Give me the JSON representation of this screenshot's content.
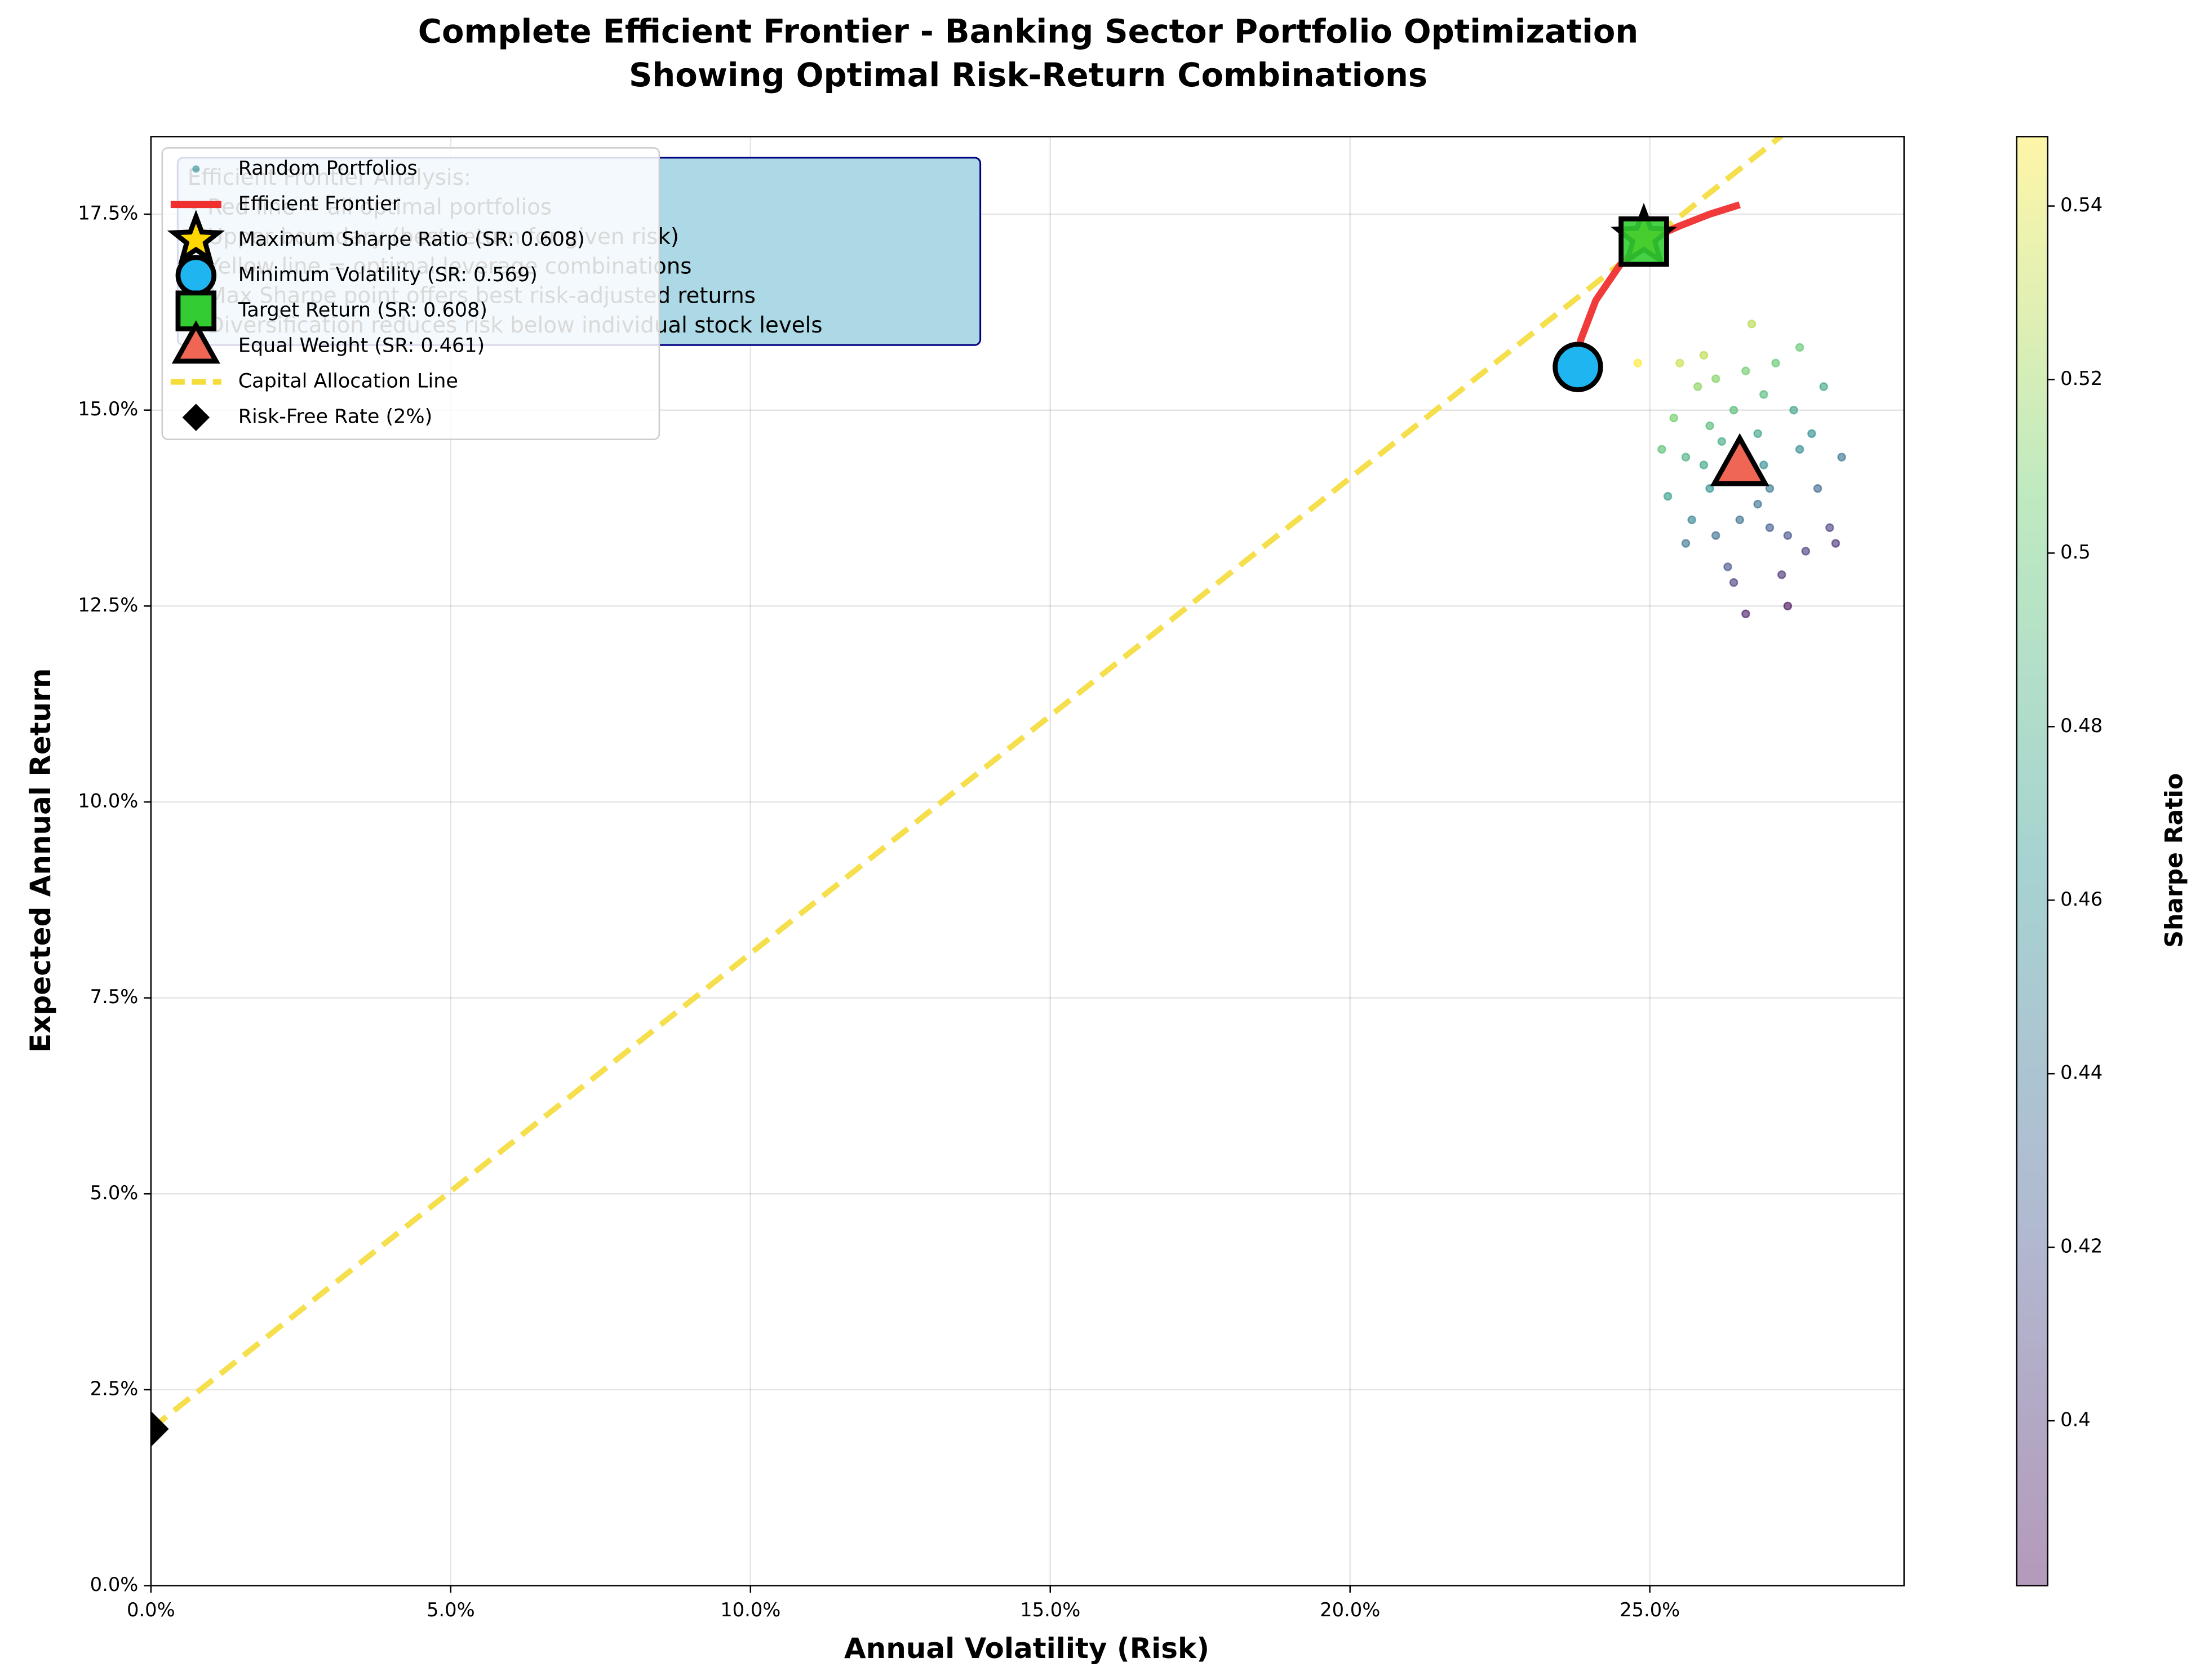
{
  "chart_data": {
    "type": "scatter",
    "title": "Complete Efficient Frontier - Banking Sector Portfolio Optimization",
    "subtitle": "Showing Optimal Risk-Return Combinations",
    "xlabel": "Annual Volatility (Risk)",
    "ylabel": "Expected Annual Return",
    "xlim": [
      0,
      29.24
    ],
    "ylim": [
      0,
      18.49
    ],
    "xticks": [
      {
        "value": 0,
        "label": "0.0%"
      },
      {
        "value": 5,
        "label": "5.0%"
      },
      {
        "value": 10,
        "label": "10.0%"
      },
      {
        "value": 15,
        "label": "15.0%"
      },
      {
        "value": 20,
        "label": "20.0%"
      },
      {
        "value": 25,
        "label": "25.0%"
      }
    ],
    "yticks": [
      {
        "value": 0,
        "label": "0.0%"
      },
      {
        "value": 2.5,
        "label": "2.5%"
      },
      {
        "value": 5,
        "label": "5.0%"
      },
      {
        "value": 7.5,
        "label": "7.5%"
      },
      {
        "value": 10,
        "label": "10.0%"
      },
      {
        "value": 12.5,
        "label": "12.5%"
      },
      {
        "value": 15,
        "label": "15.0%"
      },
      {
        "value": 17.5,
        "label": "17.5%"
      }
    ],
    "grid": true,
    "legend": "upper left",
    "colorbar": {
      "label": "Sharpe Ratio",
      "colormap": "viridis",
      "clim": [
        0.381,
        0.548
      ],
      "ticks": [
        0.4,
        0.42,
        0.44,
        0.46,
        0.48,
        0.5,
        0.52,
        0.54
      ]
    },
    "annotation": {
      "title": "Efficient Frontier Analysis:",
      "lines": [
        "• Red line = all optimal portfolios",
        "• Upper boundary (best return for given risk)",
        "• Yellow line = optimal leverage combinations",
        "• Max Sharpe point offers best risk-adjusted returns",
        "• Diversification reduces risk below individual stock levels"
      ]
    },
    "series": [
      {
        "name": "Random Portfolios",
        "kind": "scatter",
        "x": [
          26.5,
          26.2,
          26.8,
          27.0,
          26.0,
          26.4,
          25.8,
          27.3,
          27.5,
          25.6,
          26.9,
          27.2,
          26.6,
          25.4,
          26.1,
          27.8,
          28.2,
          25.9,
          26.7,
          25.3,
          27.6,
          26.3,
          27.1,
          26.0,
          25.7,
          28.0,
          26.8,
          27.4,
          25.5,
          26.4,
          27.9,
          25.2,
          24.8,
          26.6,
          27.0,
          26.2,
          26.9,
          25.9,
          27.7,
          26.5,
          27.3,
          26.1,
          27.5,
          25.6,
          28.1
        ],
        "values": [
          14.2,
          14.6,
          13.8,
          14.0,
          14.0,
          15.0,
          15.3,
          13.4,
          14.5,
          14.4,
          15.2,
          12.9,
          12.4,
          14.9,
          13.4,
          14.0,
          14.4,
          15.7,
          16.1,
          13.9,
          13.2,
          13.0,
          15.6,
          14.8,
          13.6,
          13.5,
          14.7,
          15.0,
          15.6,
          12.8,
          15.3,
          14.5,
          15.6,
          15.5,
          13.5,
          14.1,
          14.3,
          14.3,
          14.7,
          13.6,
          12.5,
          15.4,
          15.8,
          13.3,
          13.3
        ],
        "sharpe": [
          0.46,
          0.481,
          0.44,
          0.444,
          0.462,
          0.492,
          0.516,
          0.418,
          0.455,
          0.484,
          0.491,
          0.401,
          0.391,
          0.508,
          0.437,
          0.432,
          0.44,
          0.529,
          0.528,
          0.47,
          0.406,
          0.418,
          0.502,
          0.492,
          0.451,
          0.411,
          0.474,
          0.474,
          0.533,
          0.409,
          0.477,
          0.496,
          0.548,
          0.508,
          0.426,
          0.462,
          0.457,
          0.475,
          0.458,
          0.438,
          0.385,
          0.513,
          0.502,
          0.441,
          0.402
        ]
      },
      {
        "name": "Efficient Frontier",
        "kind": "line",
        "color": "#f03030",
        "x": [
          23.8,
          23.85,
          24.1,
          24.5,
          24.9,
          25.5,
          26.0,
          26.5
        ],
        "values": [
          15.55,
          15.9,
          16.4,
          16.85,
          17.15,
          17.35,
          17.5,
          17.62
        ]
      },
      {
        "name": "Maximum Sharpe Ratio (SR: 0.608)",
        "kind": "marker",
        "marker": "star",
        "color": "#ffd700",
        "x": [
          24.9
        ],
        "values": [
          17.2
        ]
      },
      {
        "name": "Minimum Volatility (SR: 0.569)",
        "kind": "marker",
        "marker": "circle",
        "color": "#1fb5f0",
        "x": [
          23.8
        ],
        "values": [
          15.55
        ]
      },
      {
        "name": "Target Return (SR: 0.608)",
        "kind": "marker",
        "marker": "square",
        "color": "#33cc33",
        "x": [
          24.9
        ],
        "values": [
          17.15
        ]
      },
      {
        "name": "Equal Weight (SR: 0.461)",
        "kind": "marker",
        "marker": "triangle",
        "color": "#f06655",
        "x": [
          26.5
        ],
        "values": [
          14.3
        ]
      },
      {
        "name": "Capital Allocation Line",
        "kind": "dashed",
        "color": "#f5dc3a",
        "x": [
          0,
          27.2
        ],
        "values": [
          2,
          18.5
        ]
      },
      {
        "name": "Risk-Free Rate (2%)",
        "kind": "marker",
        "marker": "diamond",
        "color": "#000000",
        "x": [
          0
        ],
        "values": [
          2
        ]
      }
    ]
  }
}
